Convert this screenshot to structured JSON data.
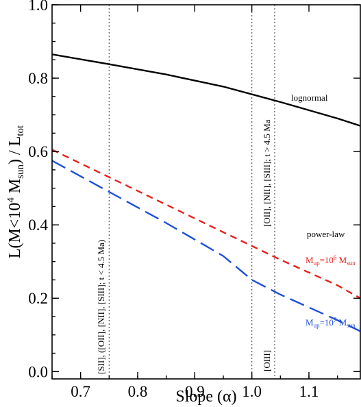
{
  "chart_data": {
    "type": "line",
    "xlabel": "Slope (α)",
    "ylabel": {
      "parts": [
        "L(M<10",
        "4",
        " M",
        "sun",
        ") / L",
        "tot"
      ]
    },
    "xlim": [
      0.65,
      1.19
    ],
    "ylim": [
      -0.02,
      1.0
    ],
    "xticks": [
      {
        "value": 0.7,
        "label": "0.7"
      },
      {
        "value": 0.8,
        "label": "0.8"
      },
      {
        "value": 0.9,
        "label": "0.9"
      },
      {
        "value": 1.0,
        "label": "1.0"
      },
      {
        "value": 1.1,
        "label": "1.1"
      }
    ],
    "yticks": [
      {
        "value": 0.0,
        "label": "0.0"
      },
      {
        "value": 0.2,
        "label": "0.2"
      },
      {
        "value": 0.4,
        "label": "0.4"
      },
      {
        "value": 0.6,
        "label": "0.6"
      },
      {
        "value": 0.8,
        "label": "0.8"
      },
      {
        "value": 1.0,
        "label": "1.0"
      }
    ],
    "grid": false,
    "series": [
      {
        "name": "lognormal",
        "color": "#000000",
        "dash": "solid",
        "points": [
          [
            0.65,
            0.865
          ],
          [
            0.75,
            0.838
          ],
          [
            0.85,
            0.81
          ],
          [
            0.95,
            0.777
          ],
          [
            1.05,
            0.735
          ],
          [
            1.15,
            0.69
          ],
          [
            1.19,
            0.67
          ]
        ]
      },
      {
        "name": "power-law, M_up=10^6 M_sun",
        "color": "#e8211b",
        "dash": "short",
        "points": [
          [
            0.65,
            0.605
          ],
          [
            0.75,
            0.53
          ],
          [
            0.85,
            0.455
          ],
          [
            0.95,
            0.38
          ],
          [
            1.05,
            0.305
          ],
          [
            1.15,
            0.235
          ],
          [
            1.19,
            0.2
          ]
        ]
      },
      {
        "name": "power-law, M_up=10^7 M_sun",
        "color": "#1e4fd8",
        "dash": "long",
        "points": [
          [
            0.65,
            0.575
          ],
          [
            0.75,
            0.49
          ],
          [
            0.85,
            0.405
          ],
          [
            0.95,
            0.315
          ],
          [
            1.0,
            0.25
          ],
          [
            1.05,
            0.21
          ],
          [
            1.15,
            0.14
          ],
          [
            1.19,
            0.11
          ]
        ]
      }
    ],
    "vlines": [
      0.75,
      1.0,
      1.04
    ],
    "annotations": {
      "lognormal": "lognormal",
      "power_law": "power-law",
      "mup6": {
        "m": "M",
        "msub": "up",
        "eq": "=10",
        "sup": "6",
        "s": " M",
        "ssub": "sun"
      },
      "mup7": {
        "m": "M",
        "msub": "up",
        "eq": "=10",
        "sup": "7",
        "s": " M",
        "ssub": "sun"
      },
      "vl1": "[SII], ([OII], [NII], [SIII]; t < 4.5 Ma)",
      "vl2": "[OIII]",
      "vl3": "[OII], [NII], [SIII]; t > 4.5 Ma"
    }
  }
}
